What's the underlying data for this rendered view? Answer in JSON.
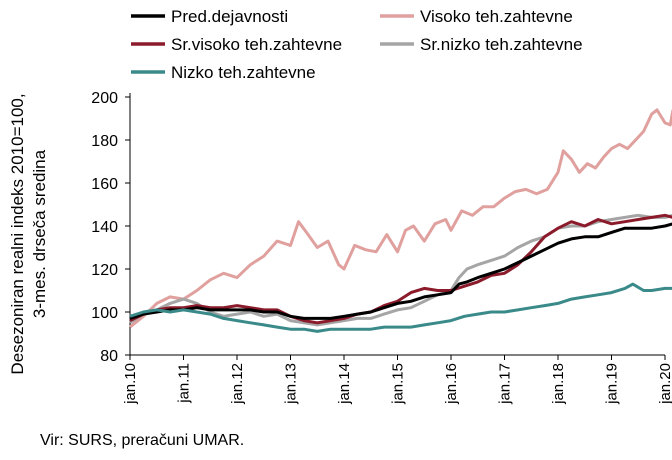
{
  "chart_data": {
    "type": "line",
    "ylabel_lines": [
      "Desezoniran realni indeks 2010=100,",
      "3-mes. drseča sredina"
    ],
    "ylim": [
      80,
      200
    ],
    "yticks": [
      80,
      100,
      120,
      140,
      160,
      180,
      200
    ],
    "xlim": [
      2010.0,
      2020.0
    ],
    "xtick_values": [
      2010,
      2011,
      2012,
      2013,
      2014,
      2015,
      2016,
      2017,
      2018,
      2019,
      2020
    ],
    "xtick_labels": [
      "jan.10",
      "jan.11",
      "jan.12",
      "jan.13",
      "jan.14",
      "jan.15",
      "jan.16",
      "jan.17",
      "jan.18",
      "jan.19",
      "jan.20"
    ],
    "legend_placement": "top",
    "grid": false,
    "series": [
      {
        "name": "Visoko teh.zahtevne",
        "color": "#e0a09e",
        "points": [
          [
            2010.0,
            93
          ],
          [
            2010.25,
            98
          ],
          [
            2010.5,
            104
          ],
          [
            2010.75,
            107
          ],
          [
            2011.0,
            106
          ],
          [
            2011.25,
            110
          ],
          [
            2011.5,
            115
          ],
          [
            2011.75,
            118
          ],
          [
            2012.0,
            116
          ],
          [
            2012.25,
            122
          ],
          [
            2012.5,
            126
          ],
          [
            2012.75,
            133
          ],
          [
            2013.0,
            131
          ],
          [
            2013.15,
            142
          ],
          [
            2013.3,
            137
          ],
          [
            2013.5,
            130
          ],
          [
            2013.7,
            133
          ],
          [
            2013.9,
            122
          ],
          [
            2014.0,
            120
          ],
          [
            2014.2,
            131
          ],
          [
            2014.4,
            129
          ],
          [
            2014.6,
            128
          ],
          [
            2014.8,
            136
          ],
          [
            2015.0,
            128
          ],
          [
            2015.15,
            138
          ],
          [
            2015.3,
            140
          ],
          [
            2015.5,
            133
          ],
          [
            2015.7,
            141
          ],
          [
            2015.9,
            143
          ],
          [
            2016.0,
            138
          ],
          [
            2016.2,
            147
          ],
          [
            2016.4,
            145
          ],
          [
            2016.6,
            149
          ],
          [
            2016.8,
            149
          ],
          [
            2017.0,
            153
          ],
          [
            2017.2,
            156
          ],
          [
            2017.4,
            157
          ],
          [
            2017.6,
            155
          ],
          [
            2017.8,
            157
          ],
          [
            2018.0,
            165
          ],
          [
            2018.1,
            175
          ],
          [
            2018.25,
            171
          ],
          [
            2018.4,
            165
          ],
          [
            2018.55,
            169
          ],
          [
            2018.7,
            167
          ],
          [
            2018.85,
            172
          ],
          [
            2019.0,
            176
          ],
          [
            2019.15,
            178
          ],
          [
            2019.3,
            176
          ],
          [
            2019.45,
            180
          ],
          [
            2019.6,
            184
          ],
          [
            2019.75,
            192
          ],
          [
            2019.85,
            194
          ],
          [
            2020.0,
            188
          ],
          [
            2020.1,
            187
          ],
          [
            2020.15,
            194
          ]
        ]
      },
      {
        "name": "Sr.nizko teh.zahtevne",
        "color": "#a5a5a5",
        "points": [
          [
            2010.0,
            95
          ],
          [
            2010.25,
            99
          ],
          [
            2010.5,
            101
          ],
          [
            2010.75,
            104
          ],
          [
            2011.0,
            106
          ],
          [
            2011.25,
            104
          ],
          [
            2011.5,
            100
          ],
          [
            2011.75,
            98
          ],
          [
            2012.0,
            99
          ],
          [
            2012.25,
            100
          ],
          [
            2012.5,
            98
          ],
          [
            2012.75,
            99
          ],
          [
            2013.0,
            96
          ],
          [
            2013.25,
            95
          ],
          [
            2013.5,
            94
          ],
          [
            2013.75,
            95
          ],
          [
            2014.0,
            96
          ],
          [
            2014.25,
            97
          ],
          [
            2014.5,
            97
          ],
          [
            2014.75,
            99
          ],
          [
            2015.0,
            101
          ],
          [
            2015.25,
            102
          ],
          [
            2015.5,
            105
          ],
          [
            2015.75,
            108
          ],
          [
            2016.0,
            110
          ],
          [
            2016.15,
            116
          ],
          [
            2016.3,
            120
          ],
          [
            2016.5,
            122
          ],
          [
            2016.75,
            124
          ],
          [
            2017.0,
            126
          ],
          [
            2017.25,
            130
          ],
          [
            2017.5,
            133
          ],
          [
            2017.75,
            135
          ],
          [
            2018.0,
            139
          ],
          [
            2018.25,
            140
          ],
          [
            2018.5,
            140
          ],
          [
            2018.75,
            142
          ],
          [
            2019.0,
            143
          ],
          [
            2019.25,
            144
          ],
          [
            2019.5,
            145
          ],
          [
            2019.75,
            144
          ],
          [
            2020.0,
            144
          ],
          [
            2020.15,
            145
          ]
        ]
      },
      {
        "name": "Sr.visoko teh.zahtevne",
        "color": "#8b1a2b",
        "points": [
          [
            2010.0,
            96
          ],
          [
            2010.25,
            99
          ],
          [
            2010.5,
            101
          ],
          [
            2010.75,
            102
          ],
          [
            2011.0,
            102
          ],
          [
            2011.25,
            103
          ],
          [
            2011.5,
            102
          ],
          [
            2011.75,
            102
          ],
          [
            2012.0,
            103
          ],
          [
            2012.25,
            102
          ],
          [
            2012.5,
            101
          ],
          [
            2012.75,
            101
          ],
          [
            2013.0,
            98
          ],
          [
            2013.25,
            96
          ],
          [
            2013.5,
            95
          ],
          [
            2013.75,
            96
          ],
          [
            2014.0,
            97
          ],
          [
            2014.25,
            99
          ],
          [
            2014.5,
            100
          ],
          [
            2014.75,
            103
          ],
          [
            2015.0,
            105
          ],
          [
            2015.25,
            109
          ],
          [
            2015.5,
            111
          ],
          [
            2015.75,
            110
          ],
          [
            2016.0,
            110
          ],
          [
            2016.25,
            112
          ],
          [
            2016.5,
            114
          ],
          [
            2016.75,
            117
          ],
          [
            2017.0,
            118
          ],
          [
            2017.25,
            122
          ],
          [
            2017.5,
            128
          ],
          [
            2017.75,
            135
          ],
          [
            2018.0,
            139
          ],
          [
            2018.25,
            142
          ],
          [
            2018.5,
            140
          ],
          [
            2018.75,
            143
          ],
          [
            2019.0,
            141
          ],
          [
            2019.25,
            142
          ],
          [
            2019.5,
            143
          ],
          [
            2019.75,
            144
          ],
          [
            2020.0,
            145
          ],
          [
            2020.15,
            144
          ]
        ]
      },
      {
        "name": "Pred.dejavnosti",
        "color": "#000000",
        "points": [
          [
            2010.0,
            97
          ],
          [
            2010.25,
            99
          ],
          [
            2010.5,
            100
          ],
          [
            2010.75,
            101
          ],
          [
            2011.0,
            101
          ],
          [
            2011.25,
            102
          ],
          [
            2011.5,
            101
          ],
          [
            2011.75,
            101
          ],
          [
            2012.0,
            101
          ],
          [
            2012.25,
            101
          ],
          [
            2012.5,
            100
          ],
          [
            2012.75,
            100
          ],
          [
            2013.0,
            98
          ],
          [
            2013.25,
            97
          ],
          [
            2013.5,
            97
          ],
          [
            2013.75,
            97
          ],
          [
            2014.0,
            98
          ],
          [
            2014.25,
            99
          ],
          [
            2014.5,
            100
          ],
          [
            2014.75,
            102
          ],
          [
            2015.0,
            104
          ],
          [
            2015.25,
            105
          ],
          [
            2015.5,
            107
          ],
          [
            2015.75,
            108
          ],
          [
            2016.0,
            109
          ],
          [
            2016.15,
            113
          ],
          [
            2016.3,
            114
          ],
          [
            2016.5,
            116
          ],
          [
            2016.75,
            118
          ],
          [
            2017.0,
            120
          ],
          [
            2017.25,
            123
          ],
          [
            2017.5,
            126
          ],
          [
            2017.75,
            129
          ],
          [
            2018.0,
            132
          ],
          [
            2018.25,
            134
          ],
          [
            2018.5,
            135
          ],
          [
            2018.75,
            135
          ],
          [
            2019.0,
            137
          ],
          [
            2019.25,
            139
          ],
          [
            2019.5,
            139
          ],
          [
            2019.75,
            139
          ],
          [
            2020.0,
            140
          ],
          [
            2020.15,
            141
          ]
        ]
      },
      {
        "name": "Nizko teh.zahtevne",
        "color": "#3a8a8a",
        "points": [
          [
            2010.0,
            98
          ],
          [
            2010.25,
            100
          ],
          [
            2010.5,
            101
          ],
          [
            2010.75,
            100
          ],
          [
            2011.0,
            101
          ],
          [
            2011.25,
            100
          ],
          [
            2011.5,
            99
          ],
          [
            2011.75,
            97
          ],
          [
            2012.0,
            96
          ],
          [
            2012.25,
            95
          ],
          [
            2012.5,
            94
          ],
          [
            2012.75,
            93
          ],
          [
            2013.0,
            92
          ],
          [
            2013.25,
            92
          ],
          [
            2013.5,
            91
          ],
          [
            2013.75,
            92
          ],
          [
            2014.0,
            92
          ],
          [
            2014.25,
            92
          ],
          [
            2014.5,
            92
          ],
          [
            2014.75,
            93
          ],
          [
            2015.0,
            93
          ],
          [
            2015.25,
            93
          ],
          [
            2015.5,
            94
          ],
          [
            2015.75,
            95
          ],
          [
            2016.0,
            96
          ],
          [
            2016.25,
            98
          ],
          [
            2016.5,
            99
          ],
          [
            2016.75,
            100
          ],
          [
            2017.0,
            100
          ],
          [
            2017.25,
            101
          ],
          [
            2017.5,
            102
          ],
          [
            2017.75,
            103
          ],
          [
            2018.0,
            104
          ],
          [
            2018.25,
            106
          ],
          [
            2018.5,
            107
          ],
          [
            2018.75,
            108
          ],
          [
            2019.0,
            109
          ],
          [
            2019.25,
            111
          ],
          [
            2019.4,
            113
          ],
          [
            2019.6,
            110
          ],
          [
            2019.75,
            110
          ],
          [
            2020.0,
            111
          ],
          [
            2020.15,
            111
          ]
        ]
      }
    ],
    "legend": [
      {
        "label": "Pred.dejavnosti",
        "color": "#000000"
      },
      {
        "label": "Visoko teh.zahtevne",
        "color": "#e0a09e"
      },
      {
        "label": "Sr.visoko teh.zahtevne",
        "color": "#8b1a2b"
      },
      {
        "label": "Sr.nizko teh.zahtevne",
        "color": "#a5a5a5"
      },
      {
        "label": "Nizko teh.zahtevne",
        "color": "#3a8a8a"
      }
    ]
  },
  "source": "Vir: SURS, preračuni UMAR."
}
